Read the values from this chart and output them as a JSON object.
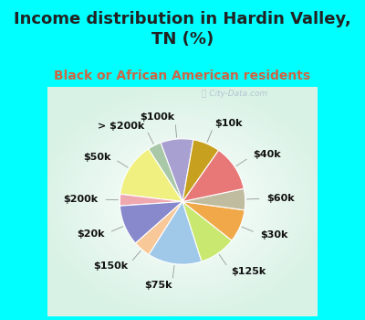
{
  "title": "Income distribution in Hardin Valley,\nTN (%)",
  "subtitle": "Black or African American residents",
  "bg_cyan": "#00FFFF",
  "bg_pie_area": "#d8ede4",
  "watermark": "ⓘ City-Data.com",
  "labels": [
    "$100k",
    "> $200k",
    "$50k",
    "$200k",
    "$20k",
    "$150k",
    "$75k",
    "$125k",
    "$30k",
    "$60k",
    "$40k",
    "$10k"
  ],
  "values": [
    8.5,
    3.5,
    14.0,
    3.0,
    10.5,
    4.5,
    14.0,
    9.5,
    8.5,
    5.5,
    12.0,
    7.0
  ],
  "colors": [
    "#a8a0d0",
    "#a8c8a8",
    "#f0f080",
    "#f0a8b0",
    "#8888cc",
    "#f8c898",
    "#a0c8e8",
    "#c8e870",
    "#f0a848",
    "#c0bca0",
    "#e87878",
    "#c8a020"
  ],
  "title_fontsize": 13,
  "subtitle_fontsize": 10,
  "label_fontsize": 8,
  "startangle": 80
}
